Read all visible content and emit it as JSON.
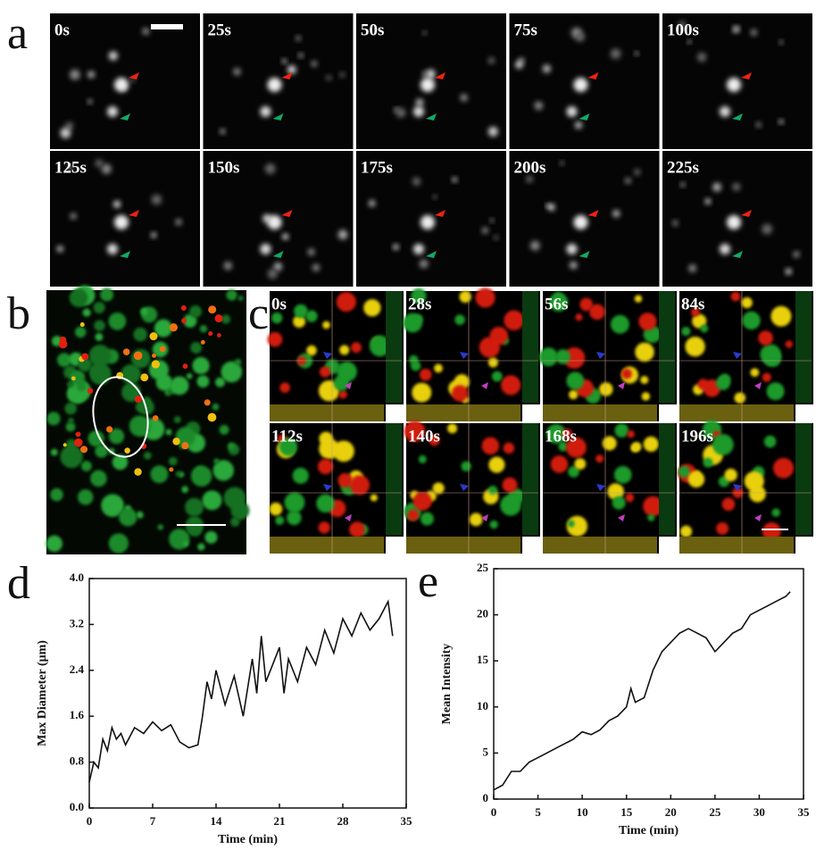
{
  "panels": {
    "a": {
      "label": "a",
      "frames": [
        "0s",
        "25s",
        "50s",
        "75s",
        "100s",
        "125s",
        "150s",
        "175s",
        "200s",
        "225s"
      ]
    },
    "b": {
      "label": "b"
    },
    "c": {
      "label": "c",
      "frames": [
        "0s",
        "28s",
        "56s",
        "84s",
        "112s",
        "140s",
        "168s",
        "196s"
      ]
    },
    "d": {
      "label": "d"
    },
    "e": {
      "label": "e"
    }
  },
  "chart_data": [
    {
      "type": "line",
      "color": "#111111",
      "x_label": "Time (min)",
      "y_label": "Max Diameter (μm)",
      "x": [
        0,
        0.5,
        1,
        1.5,
        2,
        2.5,
        3,
        3.5,
        4,
        5,
        6,
        7,
        8,
        9,
        10,
        11,
        12,
        12.5,
        13,
        13.5,
        14,
        15,
        16,
        17,
        18,
        18.5,
        19,
        19.5,
        20,
        21,
        21.5,
        22,
        23,
        24,
        25,
        26,
        27,
        28,
        29,
        30,
        31,
        32,
        33,
        33.5
      ],
      "values": [
        0.45,
        0.8,
        0.7,
        1.2,
        1.0,
        1.4,
        1.2,
        1.3,
        1.1,
        1.4,
        1.3,
        1.5,
        1.35,
        1.45,
        1.15,
        1.05,
        1.1,
        1.6,
        2.2,
        1.9,
        2.4,
        1.8,
        2.3,
        1.6,
        2.6,
        2.0,
        3.0,
        2.2,
        2.4,
        2.8,
        2.0,
        2.6,
        2.2,
        2.8,
        2.5,
        3.1,
        2.7,
        3.3,
        3.0,
        3.4,
        3.1,
        3.3,
        3.6,
        3.0
      ],
      "xlim": [
        0,
        35
      ],
      "xticks": [
        0,
        7,
        14,
        21,
        28,
        35
      ],
      "ylim": [
        0,
        4
      ],
      "yticks": [
        {
          "value": 0,
          "label": "0.0"
        },
        0.8,
        1.6,
        2.4,
        3.2,
        {
          "value": 4,
          "label": "4.0"
        }
      ]
    },
    {
      "type": "line",
      "color": "#111111",
      "x_label": "Time (min)",
      "y_label": "Mean Intensity",
      "x": [
        0,
        1,
        2,
        3,
        4,
        5,
        6,
        7,
        8,
        9,
        10,
        11,
        12,
        13,
        14,
        15,
        15.5,
        16,
        17,
        18,
        19,
        20,
        21,
        22,
        23,
        24,
        25,
        26,
        27,
        28,
        29,
        30,
        31,
        32,
        33,
        33.5
      ],
      "values": [
        1,
        1.5,
        3,
        3,
        4,
        4.5,
        5,
        5.5,
        6,
        6.5,
        7.3,
        7,
        7.5,
        8.5,
        9,
        10,
        12,
        10.5,
        11,
        14,
        16,
        17,
        18,
        18.5,
        18,
        17.5,
        16,
        17,
        18,
        18.5,
        20,
        20.5,
        21,
        21.5,
        22,
        22.5
      ],
      "xlim": [
        0,
        35
      ],
      "xticks": [
        0,
        5,
        10,
        15,
        20,
        25,
        30,
        35
      ],
      "ylim": [
        0,
        25
      ],
      "yticks": [
        0,
        5,
        10,
        15,
        20,
        25
      ]
    }
  ]
}
